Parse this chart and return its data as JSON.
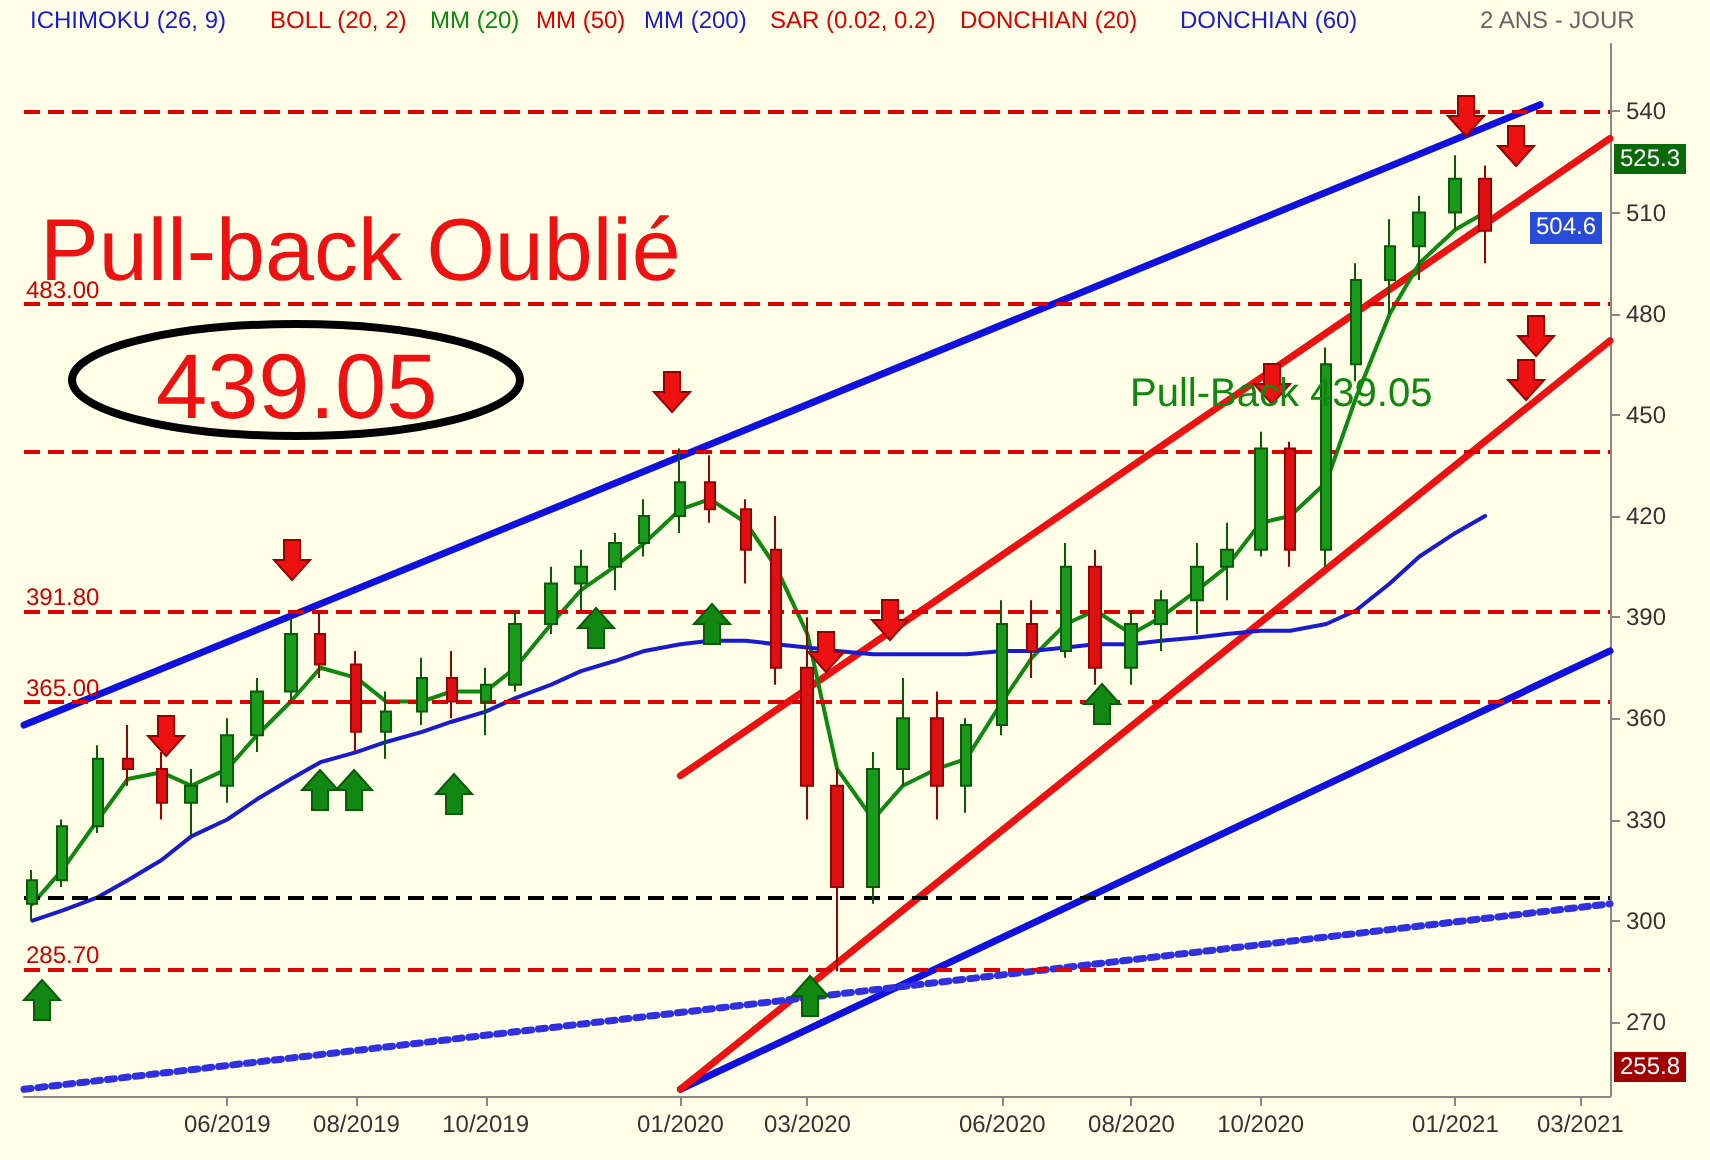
{
  "chart_data": {
    "type": "candlestick",
    "x": [
      "2019-03-01",
      "2019-03-15",
      "2019-04-01",
      "2019-04-15",
      "2019-05-01",
      "2019-05-15",
      "2019-06-01",
      "2019-06-15",
      "2019-07-01",
      "2019-07-15",
      "2019-08-01",
      "2019-08-15",
      "2019-09-01",
      "2019-09-15",
      "2019-10-01",
      "2019-10-15",
      "2019-11-01",
      "2019-11-15",
      "2019-12-01",
      "2019-12-15",
      "2020-01-01",
      "2020-01-15",
      "2020-02-01",
      "2020-02-15",
      "2020-03-01",
      "2020-03-15",
      "2020-04-01",
      "2020-04-15",
      "2020-05-01",
      "2020-05-15",
      "2020-06-01",
      "2020-06-15",
      "2020-07-01",
      "2020-07-15",
      "2020-08-01",
      "2020-08-15",
      "2020-09-01",
      "2020-09-15",
      "2020-10-01",
      "2020-10-15",
      "2020-11-01",
      "2020-11-15",
      "2020-12-01",
      "2020-12-15",
      "2021-01-01",
      "2021-01-15"
    ],
    "ohlc": [
      [
        305,
        315,
        300,
        312
      ],
      [
        312,
        330,
        310,
        328
      ],
      [
        328,
        352,
        326,
        348
      ],
      [
        348,
        358,
        340,
        345
      ],
      [
        345,
        350,
        330,
        335
      ],
      [
        335,
        345,
        325,
        340
      ],
      [
        340,
        360,
        335,
        355
      ],
      [
        355,
        372,
        350,
        368
      ],
      [
        368,
        390,
        365,
        385
      ],
      [
        385,
        392,
        372,
        376
      ],
      [
        376,
        380,
        350,
        356
      ],
      [
        356,
        368,
        348,
        362
      ],
      [
        362,
        378,
        358,
        372
      ],
      [
        372,
        380,
        360,
        365
      ],
      [
        365,
        375,
        355,
        370
      ],
      [
        370,
        392,
        368,
        388
      ],
      [
        388,
        405,
        385,
        400
      ],
      [
        400,
        410,
        392,
        405
      ],
      [
        405,
        415,
        398,
        412
      ],
      [
        412,
        425,
        408,
        420
      ],
      [
        420,
        440,
        415,
        430
      ],
      [
        430,
        438,
        418,
        422
      ],
      [
        422,
        425,
        400,
        410
      ],
      [
        410,
        420,
        370,
        375
      ],
      [
        375,
        390,
        330,
        340
      ],
      [
        340,
        345,
        285,
        310
      ],
      [
        310,
        350,
        305,
        345
      ],
      [
        345,
        372,
        340,
        360
      ],
      [
        360,
        368,
        330,
        340
      ],
      [
        340,
        360,
        332,
        358
      ],
      [
        358,
        395,
        355,
        388
      ],
      [
        388,
        395,
        372,
        380
      ],
      [
        380,
        412,
        378,
        405
      ],
      [
        405,
        410,
        370,
        375
      ],
      [
        375,
        392,
        370,
        388
      ],
      [
        388,
        398,
        380,
        395
      ],
      [
        395,
        412,
        385,
        405
      ],
      [
        405,
        418,
        395,
        410
      ],
      [
        410,
        445,
        408,
        440
      ],
      [
        440,
        442,
        405,
        410
      ],
      [
        410,
        470,
        405,
        465
      ],
      [
        465,
        495,
        460,
        490
      ],
      [
        490,
        508,
        480,
        500
      ],
      [
        500,
        515,
        490,
        510
      ],
      [
        510,
        527,
        505,
        520
      ],
      [
        520,
        524,
        495,
        504.6
      ]
    ],
    "series": [
      {
        "type": "line",
        "color": "#108810",
        "values": [
          305,
          315,
          330,
          342,
          344,
          340,
          345,
          355,
          365,
          375,
          372,
          365,
          365,
          368,
          368,
          375,
          388,
          398,
          405,
          412,
          422,
          425,
          418,
          405,
          385,
          345,
          330,
          340,
          345,
          348,
          365,
          378,
          388,
          392,
          385,
          390,
          398,
          405,
          418,
          420,
          430,
          455,
          480,
          495,
          505,
          510
        ]
      },
      {
        "type": "line",
        "color": "#1a1ad0",
        "values": [
          300,
          303,
          307,
          312,
          318,
          325,
          330,
          336,
          342,
          347,
          350,
          353,
          356,
          359,
          362,
          366,
          370,
          374,
          377,
          380,
          382,
          383,
          383,
          382,
          381,
          380,
          379,
          379,
          379,
          379,
          380,
          380,
          381,
          382,
          382,
          383,
          384,
          385,
          386,
          386,
          388,
          392,
          400,
          408,
          415,
          420
        ]
      },
      {
        "type": "line",
        "color": "#1010e0",
        "x": [
          "2019-02-25",
          "2021-02-10"
        ],
        "values": [
          358,
          542
        ]
      },
      {
        "type": "line",
        "color": "#1010e0",
        "x": [
          "2020-01-01",
          "2021-03-15"
        ],
        "values": [
          250,
          380
        ]
      },
      {
        "type": "line",
        "color": "#ee1111",
        "x": [
          "2020-01-01",
          "2021-03-15"
        ],
        "values": [
          343,
          532
        ]
      },
      {
        "type": "line",
        "color": "#ee1111",
        "x": [
          "2020-01-01",
          "2021-03-15"
        ],
        "values": [
          250,
          472
        ]
      },
      {
        "type": "line",
        "color": "#3030e0",
        "line_style": "dotted",
        "x": [
          "2019-02-25",
          "2021-03-15"
        ],
        "values": [
          250,
          305
        ]
      }
    ],
    "xlim": [
      "2019-02-25",
      "2021-03-15"
    ],
    "xticks": [
      {
        "value": "2019-06-01",
        "label": "06/2019"
      },
      {
        "value": "2019-08-01",
        "label": "08/2019"
      },
      {
        "value": "2019-10-01",
        "label": "10/2019"
      },
      {
        "value": "2020-01-01",
        "label": "01/2020"
      },
      {
        "value": "2020-03-01",
        "label": "03/2020"
      },
      {
        "value": "2020-06-01",
        "label": "06/2020"
      },
      {
        "value": "2020-08-01",
        "label": "08/2020"
      },
      {
        "value": "2020-10-01",
        "label": "10/2020"
      },
      {
        "value": "2021-01-01",
        "label": "01/2021"
      },
      {
        "value": "2021-03-01",
        "label": "03/2021"
      }
    ],
    "ylim": [
      248,
      560
    ],
    "yticks": [
      270,
      300,
      330,
      360,
      390,
      420,
      450,
      480,
      510,
      540
    ],
    "ref_lines": [
      {
        "axis": "y",
        "value": 540,
        "color": "#dd0000",
        "line_style": "dashed"
      },
      {
        "axis": "y",
        "value": 483,
        "label": "483.00",
        "color": "#dd0000",
        "line_style": "dashed"
      },
      {
        "axis": "y",
        "value": 439.05,
        "color": "#dd0000",
        "line_style": "dashed"
      },
      {
        "axis": "y",
        "value": 391.8,
        "label": "391.80",
        "color": "#dd0000",
        "line_style": "dashed"
      },
      {
        "axis": "y",
        "value": 365,
        "label": "365.00",
        "color": "#dd0000",
        "line_style": "dashed"
      },
      {
        "axis": "y",
        "value": 307,
        "color": "#000000",
        "line_style": "dashed"
      },
      {
        "axis": "y",
        "value": 285.7,
        "label": "285.70",
        "color": "#dd0000",
        "line_style": "dashed"
      }
    ],
    "annotations": [
      "ICHIMOKU (26, 9)",
      "BOLL (20, 2)",
      "MM (20)",
      "MM (50)",
      "MM (200)",
      "SAR (0.02, 0.2)",
      "DONCHIAN (20)",
      "DONCHIAN (60)",
      "2 ANS - JOUR",
      "Pull-back Oublié",
      "439.05",
      {
        "text": "Pull-Back 439.05",
        "x": "2020-12-20",
        "y": 439.05
      },
      {
        "text": "525.3",
        "y": 525.3
      },
      {
        "text": "504.6",
        "y": 504.6
      },
      {
        "text": "255.8",
        "y": 255.8
      }
    ],
    "grid": false,
    "marker": "none"
  }
}
